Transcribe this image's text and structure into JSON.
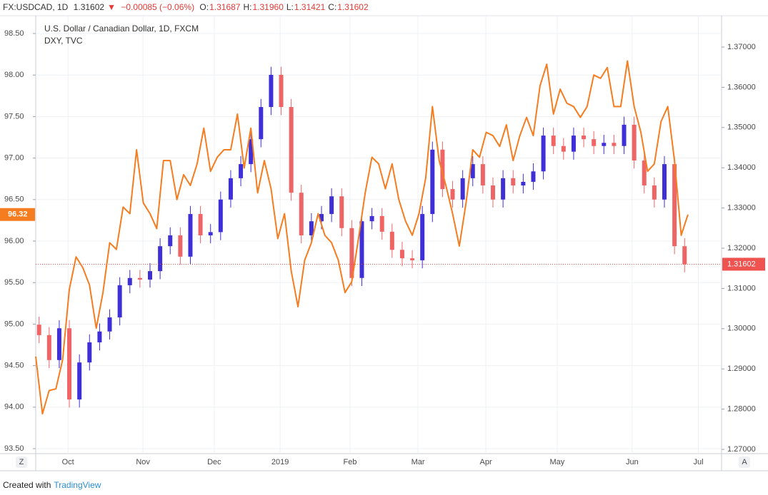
{
  "header": {
    "symbol": "FX:USDCAD, 1D",
    "last": "1.31602",
    "arrow": "▼",
    "change": "−0.00085 (−0.06%)",
    "ohlc": [
      {
        "label": "O:",
        "value": "1.31687"
      },
      {
        "label": "H:",
        "value": "1.31960"
      },
      {
        "label": "L:",
        "value": "1.31421"
      },
      {
        "label": "C:",
        "value": "1.31602"
      }
    ]
  },
  "ui": {
    "left_button": "Z",
    "right_button": "A"
  },
  "footer": {
    "created_with": "Created with",
    "brand": "TradingView"
  },
  "chart_data": {
    "type": "candlestick",
    "grid": true,
    "xlim": [
      0,
      204
    ],
    "xticks": [
      {
        "value": 9.6,
        "label": "Oct"
      },
      {
        "value": 31.9,
        "label": "Nov"
      },
      {
        "value": 53.1,
        "label": "Dec"
      },
      {
        "value": 72.7,
        "label": "2019"
      },
      {
        "value": 93.5,
        "label": "Feb"
      },
      {
        "value": 113.7,
        "label": "Mar"
      },
      {
        "value": 133.9,
        "label": "Apr"
      },
      {
        "value": 155.1,
        "label": "May"
      },
      {
        "value": 177.4,
        "label": "Jun"
      },
      {
        "value": 197.1,
        "label": "Jul"
      }
    ],
    "ylim": [
      93.44,
      98.646
    ],
    "yticks": [
      {
        "value": 93.5,
        "label": "93.50"
      },
      {
        "value": 94,
        "label": "94.00"
      },
      {
        "value": 94.5,
        "label": "94.50"
      },
      {
        "value": 95,
        "label": "95.00"
      },
      {
        "value": 95.5,
        "label": "95.50"
      },
      {
        "value": 96,
        "label": "96.00"
      },
      {
        "value": 96.5,
        "label": "96.50"
      },
      {
        "value": 97,
        "label": "97.00"
      },
      {
        "value": 97.5,
        "label": "97.50"
      },
      {
        "value": 98,
        "label": "98.00"
      },
      {
        "value": 98.5,
        "label": "98.50"
      }
    ],
    "y2lim": [
      1.26894,
      1.37638
    ],
    "y2ticks": [
      {
        "value": 1.27,
        "label": "1.27000"
      },
      {
        "value": 1.28,
        "label": "1.28000"
      },
      {
        "value": 1.29,
        "label": "1.29000"
      },
      {
        "value": 1.3,
        "label": "1.30000"
      },
      {
        "value": 1.31,
        "label": "1.31000"
      },
      {
        "value": 1.32,
        "label": "1.32000"
      },
      {
        "value": 1.33,
        "label": "1.33000"
      },
      {
        "value": 1.34,
        "label": "1.34000"
      },
      {
        "value": 1.35,
        "label": "1.35000"
      },
      {
        "value": 1.36,
        "label": "1.36000"
      },
      {
        "value": 1.37,
        "label": "1.37000"
      }
    ],
    "last_y": 96.32,
    "last_y2": 1.31602,
    "series": [
      {
        "name": "U.S. Dollar / Canadian Dollar, 1D, FXCM",
        "type": "candlestick",
        "axis": "y2",
        "up_color": "#3f2fd6",
        "down_color": "#ef6464",
        "last_color": "#ef5350",
        "x": [
          1,
          4,
          7,
          10,
          13,
          16,
          19,
          22,
          25,
          28,
          31,
          34,
          37,
          40,
          43,
          46,
          49,
          52,
          55,
          58,
          61,
          64,
          67,
          70,
          73,
          76,
          79,
          82,
          85,
          88,
          91,
          94,
          97,
          100,
          103,
          106,
          109,
          112,
          115,
          118,
          121,
          124,
          127,
          130,
          133,
          136,
          139,
          142,
          145,
          148,
          151,
          154,
          157,
          160,
          163,
          166,
          169,
          172,
          175,
          178,
          181,
          184,
          187,
          190,
          193
        ],
        "open": [
          1.301,
          1.2984,
          1.2922,
          1.3001,
          1.2824,
          1.2916,
          1.2966,
          1.2993,
          1.3028,
          1.3108,
          1.3126,
          1.3122,
          1.3143,
          1.3205,
          1.3232,
          1.3179,
          1.3285,
          1.3232,
          1.324,
          1.3321,
          1.3374,
          1.3409,
          1.3471,
          1.3551,
          1.3631,
          1.3551,
          1.3338,
          1.3232,
          1.3267,
          1.3285,
          1.3329,
          1.325,
          1.3126,
          1.3267,
          1.328,
          1.3241,
          1.3196,
          1.3175,
          1.317,
          1.3285,
          1.3445,
          1.3347,
          1.3321,
          1.3374,
          1.3409,
          1.3356,
          1.3321,
          1.3374,
          1.3356,
          1.3365,
          1.3391,
          1.348,
          1.3454,
          1.344,
          1.348,
          1.3471,
          1.3454,
          1.3462,
          1.3454,
          1.3507,
          1.3418,
          1.3356,
          1.3321,
          1.3409,
          1.3205
        ],
        "high": [
          1.303,
          1.3004,
          1.3021,
          1.3021,
          1.2936,
          1.2986,
          1.3013,
          1.3048,
          1.3128,
          1.3146,
          1.3146,
          1.3163,
          1.3225,
          1.3252,
          1.3252,
          1.3305,
          1.3305,
          1.326,
          1.3341,
          1.3394,
          1.3429,
          1.3491,
          1.3571,
          1.3651,
          1.3651,
          1.3571,
          1.3358,
          1.3287,
          1.3305,
          1.3349,
          1.3349,
          1.327,
          1.3287,
          1.33,
          1.33,
          1.3261,
          1.3216,
          1.3195,
          1.3305,
          1.3465,
          1.3465,
          1.3367,
          1.3394,
          1.3429,
          1.3429,
          1.3376,
          1.3394,
          1.3394,
          1.3385,
          1.3411,
          1.35,
          1.35,
          1.3474,
          1.35,
          1.35,
          1.3491,
          1.3482,
          1.3482,
          1.3527,
          1.3527,
          1.3438,
          1.3376,
          1.3429,
          1.3429,
          1.3225
        ],
        "low": [
          1.2964,
          1.2902,
          1.2902,
          1.2804,
          1.2804,
          1.2896,
          1.2946,
          1.2973,
          1.3008,
          1.3088,
          1.3102,
          1.3102,
          1.3123,
          1.3185,
          1.3159,
          1.3159,
          1.3212,
          1.3212,
          1.322,
          1.3301,
          1.3354,
          1.3389,
          1.3451,
          1.3531,
          1.3531,
          1.3318,
          1.3212,
          1.3212,
          1.3247,
          1.3265,
          1.323,
          1.3106,
          1.3106,
          1.3247,
          1.3221,
          1.3176,
          1.3155,
          1.315,
          1.315,
          1.3265,
          1.3327,
          1.3301,
          1.3301,
          1.3354,
          1.3336,
          1.3301,
          1.3301,
          1.3336,
          1.3336,
          1.3345,
          1.3371,
          1.3434,
          1.342,
          1.342,
          1.3451,
          1.3434,
          1.3434,
          1.3434,
          1.3434,
          1.3398,
          1.3336,
          1.3301,
          1.3301,
          1.3185,
          1.314
        ],
        "close": [
          1.2984,
          1.2922,
          1.3001,
          1.2824,
          1.2916,
          1.2966,
          1.2993,
          1.3028,
          1.3108,
          1.3126,
          1.3122,
          1.3143,
          1.3205,
          1.3232,
          1.3179,
          1.3285,
          1.3232,
          1.324,
          1.3321,
          1.3374,
          1.3409,
          1.3471,
          1.3551,
          1.3631,
          1.3551,
          1.3338,
          1.3232,
          1.3267,
          1.3285,
          1.3329,
          1.325,
          1.3126,
          1.3267,
          1.328,
          1.3241,
          1.3196,
          1.3175,
          1.317,
          1.3285,
          1.3445,
          1.3347,
          1.3321,
          1.3374,
          1.3409,
          1.3356,
          1.3321,
          1.3374,
          1.3356,
          1.3365,
          1.3391,
          1.348,
          1.3454,
          1.344,
          1.348,
          1.3471,
          1.3454,
          1.3462,
          1.3454,
          1.3507,
          1.3418,
          1.3356,
          1.3321,
          1.3409,
          1.3205,
          1.316
        ]
      },
      {
        "name": "DXY, TVC",
        "type": "line",
        "axis": "y",
        "color": "#f57c1f",
        "x": [
          0,
          2,
          4,
          6,
          8,
          10,
          12,
          14,
          16,
          18,
          20,
          22,
          24,
          26,
          28,
          30,
          32,
          34,
          36,
          38,
          40,
          42,
          44,
          46,
          48,
          50,
          52,
          54,
          56,
          58,
          60,
          62,
          64,
          66,
          68,
          70,
          72,
          74,
          76,
          78,
          80,
          82,
          84,
          86,
          88,
          90,
          92,
          94,
          96,
          98,
          100,
          102,
          104,
          106,
          108,
          110,
          112,
          114,
          116,
          118,
          120,
          122,
          124,
          126,
          128,
          130,
          132,
          134,
          136,
          138,
          140,
          142,
          144,
          146,
          148,
          150,
          152,
          154,
          156,
          158,
          160,
          162,
          164,
          166,
          168,
          170,
          172,
          174,
          176,
          178,
          180,
          182,
          184,
          186,
          188,
          190,
          192,
          194
        ],
        "values": [
          94.61,
          93.92,
          94.2,
          94.22,
          94.57,
          95.42,
          95.81,
          95.68,
          95.47,
          94.95,
          95.38,
          95.98,
          95.9,
          96.41,
          96.33,
          97.1,
          96.46,
          96.33,
          96.15,
          96.97,
          96.97,
          96.5,
          96.8,
          96.67,
          96.93,
          97.36,
          96.84,
          97.01,
          97.1,
          97.1,
          97.53,
          96.88,
          97.36,
          96.58,
          96.97,
          96.63,
          96.03,
          96.33,
          95.64,
          95.21,
          95.77,
          95.98,
          96.33,
          96.07,
          95.98,
          95.77,
          95.38,
          95.51,
          96.03,
          96.58,
          97.01,
          96.93,
          96.63,
          96.93,
          96.5,
          96.24,
          96.07,
          96.33,
          96.76,
          97.62,
          96.97,
          96.67,
          96.33,
          95.94,
          96.46,
          97.1,
          97.01,
          97.31,
          97.27,
          97.14,
          97.4,
          96.97,
          97.27,
          97.49,
          97.27,
          97.87,
          98.13,
          97.53,
          97.83,
          97.66,
          97.62,
          97.49,
          97.62,
          98.0,
          97.96,
          98.09,
          97.62,
          97.62,
          98.17,
          97.62,
          97.31,
          96.84,
          96.93,
          97.44,
          97.62,
          96.97,
          96.07,
          96.32
        ]
      }
    ]
  }
}
